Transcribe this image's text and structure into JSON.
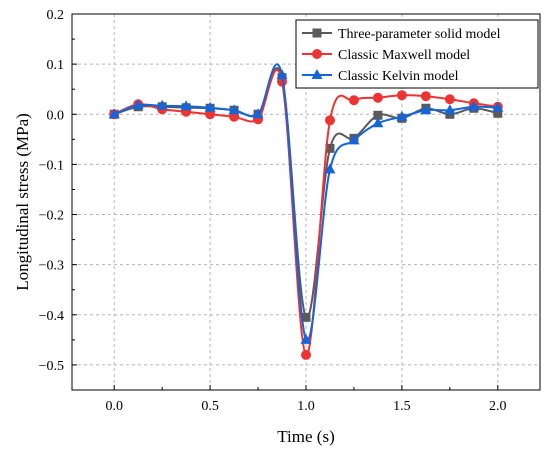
{
  "chart_data": {
    "type": "line",
    "title": "",
    "xlabel": "Time (s)",
    "ylabel": "Longitudinal stress (MPa)",
    "xlim": [
      -0.22,
      2.22
    ],
    "ylim": [
      -0.55,
      0.2
    ],
    "xticks": [
      0.0,
      0.5,
      1.0,
      1.5,
      2.0
    ],
    "xtick_labels": [
      "0.0",
      "0.5",
      "1.0",
      "1.5",
      "2.0"
    ],
    "yticks": [
      0.2,
      0.1,
      0.0,
      -0.1,
      -0.2,
      -0.3,
      -0.4,
      -0.5
    ],
    "ytick_labels": [
      "0.2",
      "0.1",
      "0.0",
      "−0.1",
      "−0.2",
      "−0.3",
      "−0.4",
      "−0.5"
    ],
    "grid": true,
    "legend_position": "top-right",
    "series": [
      {
        "name": "Three-parameter solid model",
        "color": "#5a5a5a",
        "marker": "square",
        "x": [
          0.0,
          0.125,
          0.25,
          0.375,
          0.5,
          0.625,
          0.75,
          0.875,
          1.0,
          1.125,
          1.25,
          1.375,
          1.5,
          1.625,
          1.75,
          1.875,
          2.0
        ],
        "y": [
          0.0,
          0.015,
          0.015,
          0.013,
          0.012,
          0.008,
          0.0,
          0.073,
          -0.405,
          -0.068,
          -0.048,
          -0.002,
          -0.008,
          0.012,
          0.0,
          0.012,
          0.002
        ]
      },
      {
        "name": "Classic Maxwell model",
        "color": "#ee3333",
        "marker": "circle",
        "x": [
          0.0,
          0.125,
          0.25,
          0.375,
          0.5,
          0.625,
          0.75,
          0.875,
          1.0,
          1.125,
          1.25,
          1.375,
          1.5,
          1.625,
          1.75,
          1.875,
          2.0
        ],
        "y": [
          0.0,
          0.02,
          0.01,
          0.005,
          0.0,
          -0.005,
          -0.01,
          0.065,
          -0.48,
          -0.012,
          0.028,
          0.033,
          0.038,
          0.036,
          0.03,
          0.022,
          0.015
        ]
      },
      {
        "name": "Classic Kelvin model",
        "color": "#1565d8",
        "marker": "triangle",
        "x": [
          0.0,
          0.125,
          0.25,
          0.375,
          0.5,
          0.625,
          0.75,
          0.875,
          1.0,
          1.125,
          1.25,
          1.375,
          1.5,
          1.625,
          1.75,
          1.875,
          2.0
        ],
        "y": [
          0.0,
          0.018,
          0.017,
          0.016,
          0.013,
          0.008,
          0.0,
          0.078,
          -0.45,
          -0.11,
          -0.052,
          -0.018,
          -0.005,
          0.008,
          0.008,
          0.015,
          0.013
        ]
      }
    ]
  }
}
